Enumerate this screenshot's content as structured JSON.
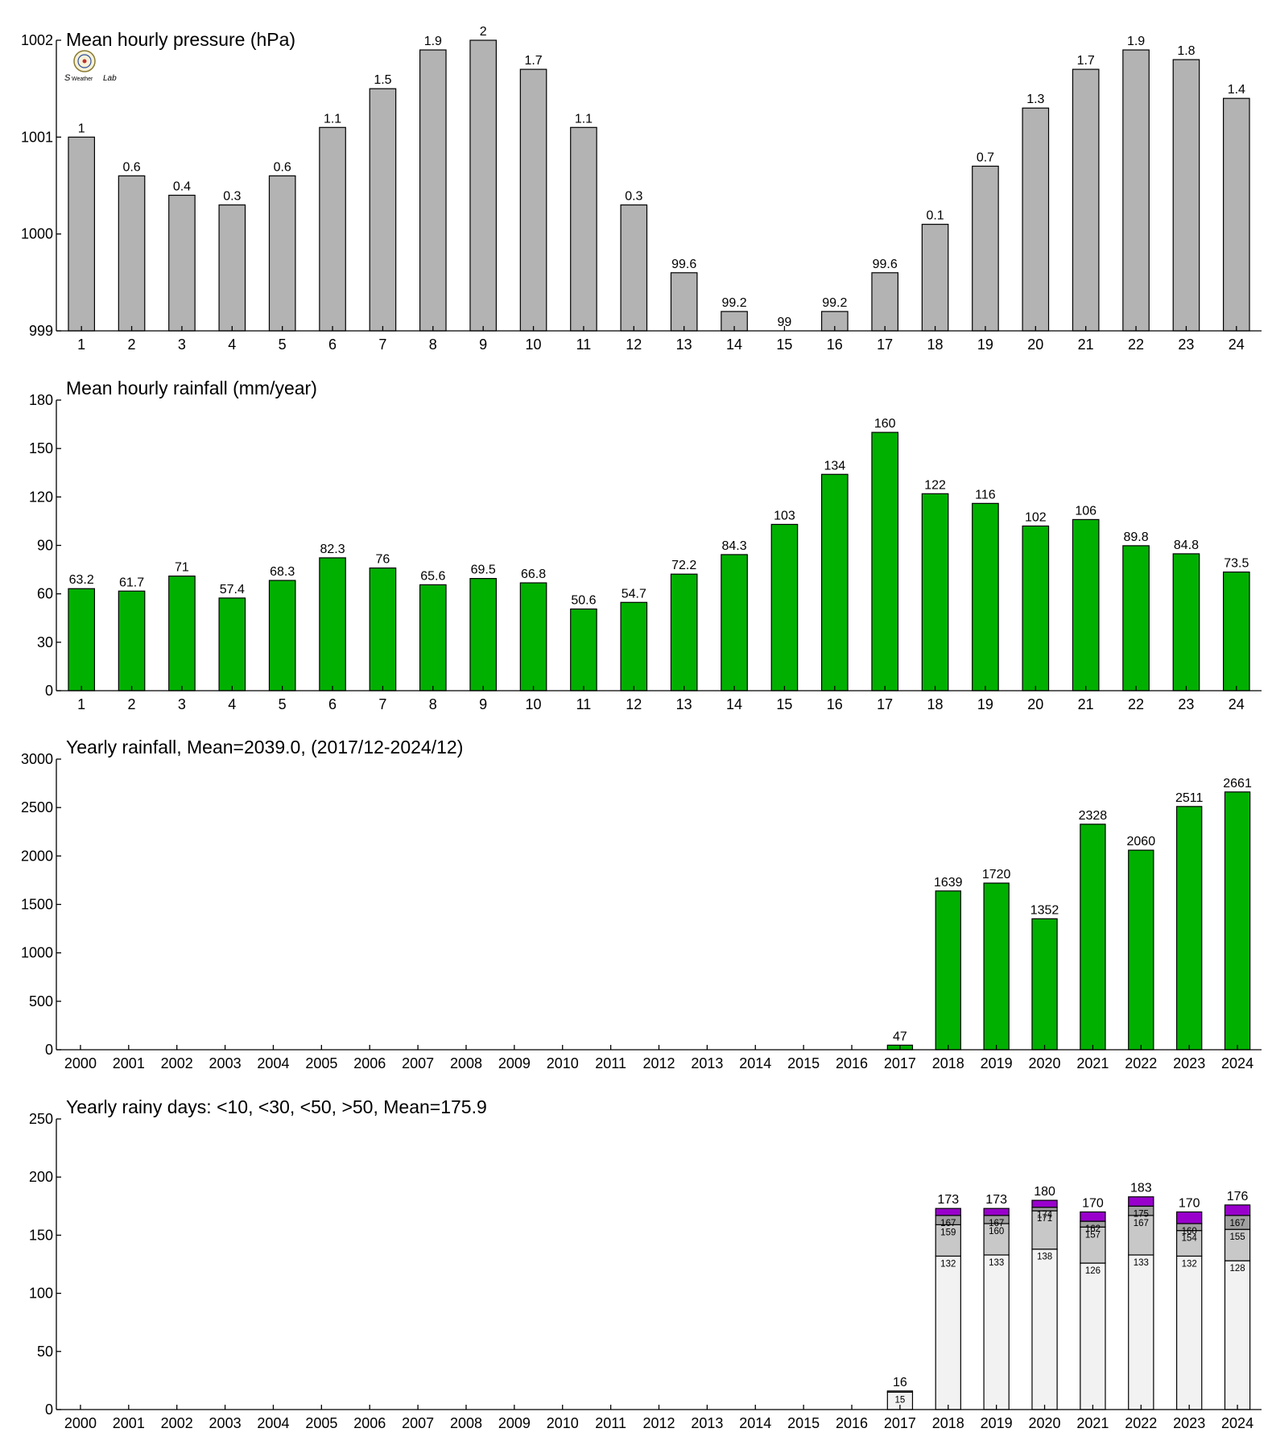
{
  "charts": [
    {
      "type": "bar",
      "title": "Mean hourly pressure (hPa)",
      "categories": [
        "1",
        "2",
        "3",
        "4",
        "5",
        "6",
        "7",
        "8",
        "9",
        "10",
        "11",
        "12",
        "13",
        "14",
        "15",
        "16",
        "17",
        "18",
        "19",
        "20",
        "21",
        "22",
        "23",
        "24"
      ],
      "values": [
        1001.0,
        1000.6,
        1000.4,
        1000.3,
        1000.6,
        1001.1,
        1001.5,
        1001.9,
        1002.0,
        1001.7,
        1001.1,
        1000.3,
        999.6,
        999.2,
        999.0,
        999.2,
        999.6,
        1000.1,
        1000.7,
        1001.3,
        1001.7,
        1001.9,
        1001.8,
        1001.4
      ],
      "labels": [
        "1",
        "0.6",
        "0.4",
        "0.3",
        "0.6",
        "1.1",
        "1.5",
        "1.9",
        "2",
        "1.7",
        "1.1",
        "0.3",
        "99.6",
        "99.2",
        "99",
        "99.2",
        "99.6",
        "0.1",
        "0.7",
        "1.3",
        "1.7",
        "1.9",
        "1.8",
        "1.4"
      ],
      "ylim": [
        999,
        1002
      ],
      "yticks": [
        999,
        1000,
        1001,
        1002
      ],
      "color": "#b3b3b3"
    },
    {
      "type": "bar",
      "title": "Mean hourly rainfall (mm/year)",
      "categories": [
        "1",
        "2",
        "3",
        "4",
        "5",
        "6",
        "7",
        "8",
        "9",
        "10",
        "11",
        "12",
        "13",
        "14",
        "15",
        "16",
        "17",
        "18",
        "19",
        "20",
        "21",
        "22",
        "23",
        "24"
      ],
      "values": [
        63.2,
        61.7,
        71,
        57.4,
        68.3,
        82.3,
        76,
        65.6,
        69.5,
        66.8,
        50.6,
        54.7,
        72.2,
        84.3,
        103,
        134,
        160,
        122,
        116,
        102,
        106,
        89.8,
        84.8,
        73.5
      ],
      "labels": [
        "63.2",
        "61.7",
        "71",
        "57.4",
        "68.3",
        "82.3",
        "76",
        "65.6",
        "69.5",
        "66.8",
        "50.6",
        "54.7",
        "72.2",
        "84.3",
        "103",
        "134",
        "160",
        "122",
        "116",
        "102",
        "106",
        "89.8",
        "84.8",
        "73.5"
      ],
      "ylim": [
        0,
        180
      ],
      "yticks": [
        0,
        30,
        60,
        90,
        120,
        150,
        180
      ],
      "color": "#00b000"
    },
    {
      "type": "bar",
      "title": "Yearly rainfall, Mean=2039.0, (2017/12-2024/12)",
      "categories": [
        "2000",
        "2001",
        "2002",
        "2003",
        "2004",
        "2005",
        "2006",
        "2007",
        "2008",
        "2009",
        "2010",
        "2011",
        "2012",
        "2013",
        "2014",
        "2015",
        "2016",
        "2017",
        "2018",
        "2019",
        "2020",
        "2021",
        "2022",
        "2023",
        "2024"
      ],
      "values": [
        0,
        0,
        0,
        0,
        0,
        0,
        0,
        0,
        0,
        0,
        0,
        0,
        0,
        0,
        0,
        0,
        0,
        47,
        1639,
        1720,
        1352,
        2328,
        2060,
        2511,
        2661
      ],
      "labels": [
        "",
        "",
        "",
        "",
        "",
        "",
        "",
        "",
        "",
        "",
        "",
        "",
        "",
        "",
        "",
        "",
        "",
        "47",
        "1639",
        "1720",
        "1352",
        "2328",
        "2060",
        "2511",
        "2661"
      ],
      "ylim": [
        0,
        3000
      ],
      "yticks": [
        0,
        500,
        1000,
        1500,
        2000,
        2500,
        3000
      ],
      "color": "#00b000"
    },
    {
      "type": "bar",
      "stacked": true,
      "title": "Yearly rainy days: <10, <30, <50, >50, Mean=175.9",
      "categories": [
        "2000",
        "2001",
        "2002",
        "2003",
        "2004",
        "2005",
        "2006",
        "2007",
        "2008",
        "2009",
        "2010",
        "2011",
        "2012",
        "2013",
        "2014",
        "2015",
        "2016",
        "2017",
        "2018",
        "2019",
        "2020",
        "2021",
        "2022",
        "2023",
        "2024"
      ],
      "ylim": [
        0,
        250
      ],
      "yticks": [
        0,
        50,
        100,
        150,
        200,
        250
      ],
      "stack_colors": [
        "#f2f2f2",
        "#c8c8c8",
        "#a0a0a0",
        "#9900cc"
      ],
      "cumulative": [
        [
          0,
          0,
          0,
          0
        ],
        [
          0,
          0,
          0,
          0
        ],
        [
          0,
          0,
          0,
          0
        ],
        [
          0,
          0,
          0,
          0
        ],
        [
          0,
          0,
          0,
          0
        ],
        [
          0,
          0,
          0,
          0
        ],
        [
          0,
          0,
          0,
          0
        ],
        [
          0,
          0,
          0,
          0
        ],
        [
          0,
          0,
          0,
          0
        ],
        [
          0,
          0,
          0,
          0
        ],
        [
          0,
          0,
          0,
          0
        ],
        [
          0,
          0,
          0,
          0
        ],
        [
          0,
          0,
          0,
          0
        ],
        [
          0,
          0,
          0,
          0
        ],
        [
          0,
          0,
          0,
          0
        ],
        [
          0,
          0,
          0,
          0
        ],
        [
          0,
          0,
          0,
          0
        ],
        [
          15,
          16,
          16,
          16
        ],
        [
          132,
          159,
          167,
          173
        ],
        [
          133,
          160,
          167,
          173
        ],
        [
          138,
          171,
          174,
          180
        ],
        [
          126,
          157,
          162,
          170
        ],
        [
          133,
          167,
          175,
          183
        ],
        [
          132,
          154,
          160,
          170
        ],
        [
          128,
          155,
          167,
          176
        ]
      ],
      "segment_labels": [
        [],
        [],
        [],
        [],
        [],
        [],
        [],
        [],
        [],
        [],
        [],
        [],
        [],
        [],
        [],
        [],
        [],
        [
          "15"
        ],
        [
          "132",
          "159",
          "167"
        ],
        [
          "133",
          "160",
          "167"
        ],
        [
          "138",
          "171",
          "174"
        ],
        [
          "126",
          "157",
          "162"
        ],
        [
          "133",
          "167",
          "175"
        ],
        [
          "132",
          "154",
          "160"
        ],
        [
          "128",
          "155",
          "167"
        ]
      ],
      "total_labels": [
        "",
        "",
        "",
        "",
        "",
        "",
        "",
        "",
        "",
        "",
        "",
        "",
        "",
        "",
        "",
        "",
        "",
        "16",
        "173",
        "173",
        "180",
        "170",
        "183",
        "170",
        "176"
      ]
    }
  ],
  "logo": {
    "name": "station-logo",
    "text": "Lab"
  }
}
